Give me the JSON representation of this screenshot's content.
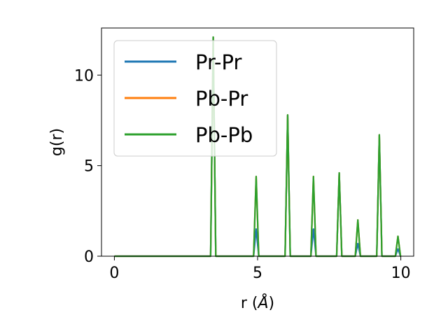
{
  "chart_data": {
    "type": "line",
    "xlabel": "r (",
    "xlabel_unit": "Å",
    "xlabel_close": ")",
    "ylabel": "g(r)",
    "xlim": [
      -0.45,
      10.45
    ],
    "ylim": [
      0,
      12.6
    ],
    "xticks": [
      0,
      5,
      10
    ],
    "yticks": [
      0,
      5,
      10
    ],
    "xtick_labels": [
      "0",
      "5",
      "10"
    ],
    "ytick_labels": [
      "0",
      "5",
      "10"
    ],
    "grid": false,
    "legend_position": "upper-left",
    "peak_halfwidth": 0.09,
    "series": [
      {
        "name": "Pr-Pr",
        "color": "#1f77b4",
        "peaks": [
          [
            3.45,
            12.1
          ],
          [
            4.95,
            1.5
          ],
          [
            6.05,
            7.8
          ],
          [
            6.95,
            1.5
          ],
          [
            7.85,
            4.6
          ],
          [
            8.5,
            0.7
          ],
          [
            9.25,
            6.7
          ],
          [
            9.9,
            0.4
          ]
        ]
      },
      {
        "name": "Pb-Pr",
        "color": "#ff7f0e",
        "peaks": [
          [
            3.45,
            12.1
          ],
          [
            4.95,
            4.4
          ],
          [
            6.05,
            7.8
          ],
          [
            6.95,
            4.4
          ],
          [
            7.85,
            4.6
          ],
          [
            8.5,
            2.0
          ],
          [
            9.25,
            6.7
          ],
          [
            9.9,
            1.1
          ]
        ]
      },
      {
        "name": "Pb-Pb",
        "color": "#2ca02c",
        "peaks": [
          [
            3.45,
            12.1
          ],
          [
            4.95,
            4.4
          ],
          [
            6.05,
            7.8
          ],
          [
            6.95,
            4.4
          ],
          [
            7.85,
            4.6
          ],
          [
            8.5,
            2.0
          ],
          [
            9.25,
            6.7
          ],
          [
            9.9,
            1.1
          ]
        ]
      }
    ]
  }
}
